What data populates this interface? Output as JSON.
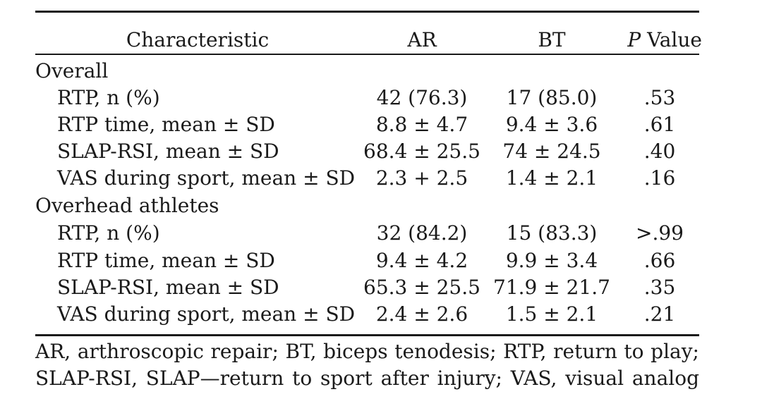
{
  "table": {
    "header": {
      "characteristic": "Characteristic",
      "ar": "AR",
      "bt": "BT",
      "p_italic": "P",
      "p_rest": " Value"
    },
    "groups": [
      {
        "label": "Overall",
        "rows": [
          {
            "label": "RTP, n (%)",
            "ar": "42 (76.3)",
            "bt": "17 (85.0)",
            "p": ".53"
          },
          {
            "label": "RTP time, mean ± SD",
            "ar": "8.8 ± 4.7",
            "bt": "9.4 ± 3.6",
            "p": ".61"
          },
          {
            "label": "SLAP-RSI, mean ± SD",
            "ar": "68.4 ± 25.5",
            "bt": "74 ± 24.5",
            "p": ".40"
          },
          {
            "label": "VAS during sport, mean ± SD",
            "ar": "2.3 + 2.5",
            "bt": "1.4 ± 2.1",
            "p": ".16"
          }
        ]
      },
      {
        "label": "Overhead athletes",
        "rows": [
          {
            "label": "RTP, n (%)",
            "ar": "32 (84.2)",
            "bt": "15 (83.3)",
            "p": ">.99"
          },
          {
            "label": "RTP time, mean ± SD",
            "ar": "9.4 ± 4.2",
            "bt": "9.9 ± 3.4",
            "p": ".66"
          },
          {
            "label": "SLAP-RSI, mean ± SD",
            "ar": "65.3 ± 25.5",
            "bt": "71.9 ± 21.7",
            "p": ".35"
          },
          {
            "label": "VAS during sport, mean ± SD",
            "ar": "2.4 ± 2.6",
            "bt": "1.5 ± 2.1",
            "p": ".21"
          }
        ]
      }
    ]
  },
  "footnote": {
    "line1": "AR, arthroscopic repair; BT, biceps tenodesis; RTP, return to play;",
    "line2": "SLAP-RSI, SLAP—return to sport after injury; VAS, visual analog"
  }
}
